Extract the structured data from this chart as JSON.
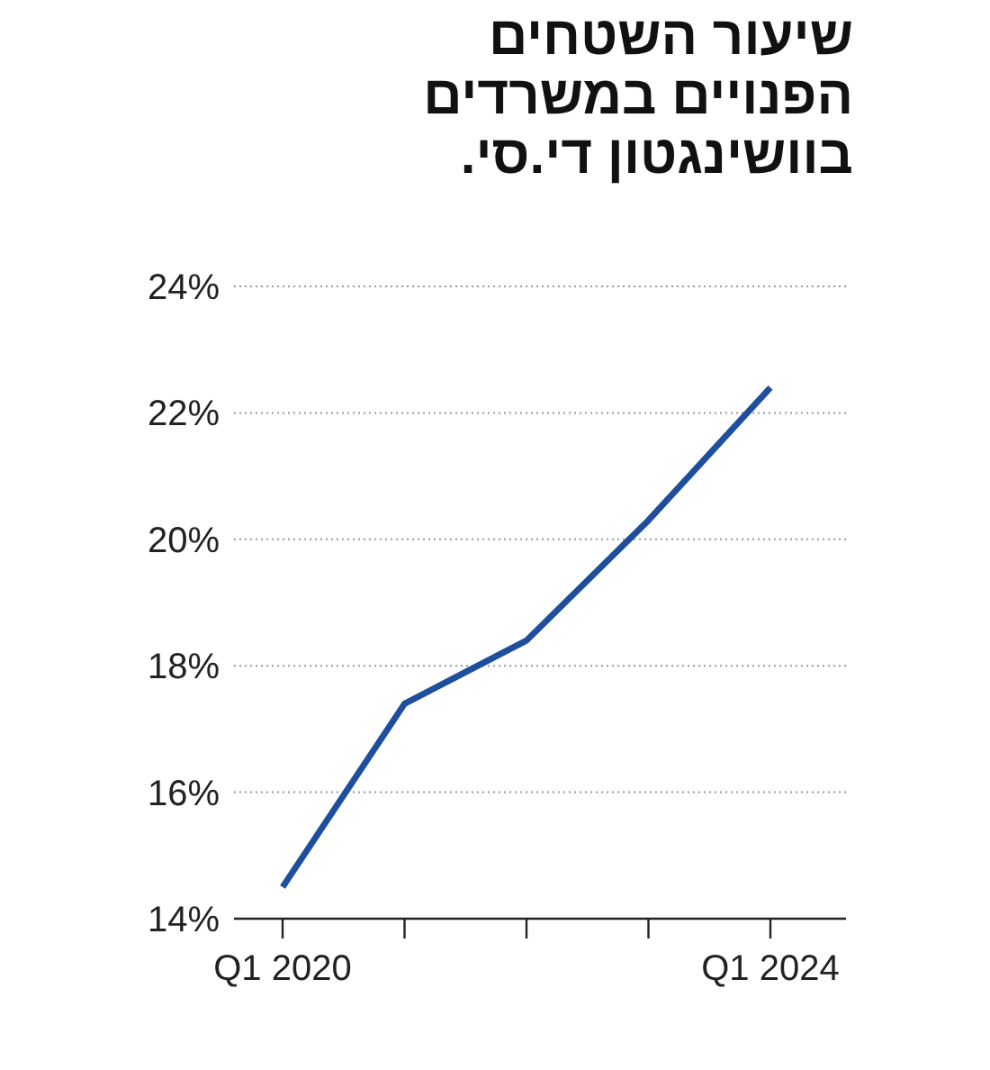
{
  "chart_data": {
    "type": "line",
    "title": "שיעור השטחים הפנויים במשרדים בוושינגטון די.סי.",
    "categories": [
      "Q1 2020",
      null,
      null,
      null,
      "Q1 2024"
    ],
    "series": [
      {
        "color": "#1f4e9c",
        "values": [
          14.5,
          17.4,
          18.4,
          20.3,
          22.4
        ]
      }
    ],
    "ylim": [
      14,
      24
    ],
    "yticks": [
      {
        "value": 14,
        "label": "14%"
      },
      {
        "value": 16,
        "label": "16%"
      },
      {
        "value": 18,
        "label": "18%"
      },
      {
        "value": 20,
        "label": "20%"
      },
      {
        "value": 22,
        "label": "22%"
      },
      {
        "value": 24,
        "label": "24%"
      }
    ],
    "grid": "y"
  }
}
